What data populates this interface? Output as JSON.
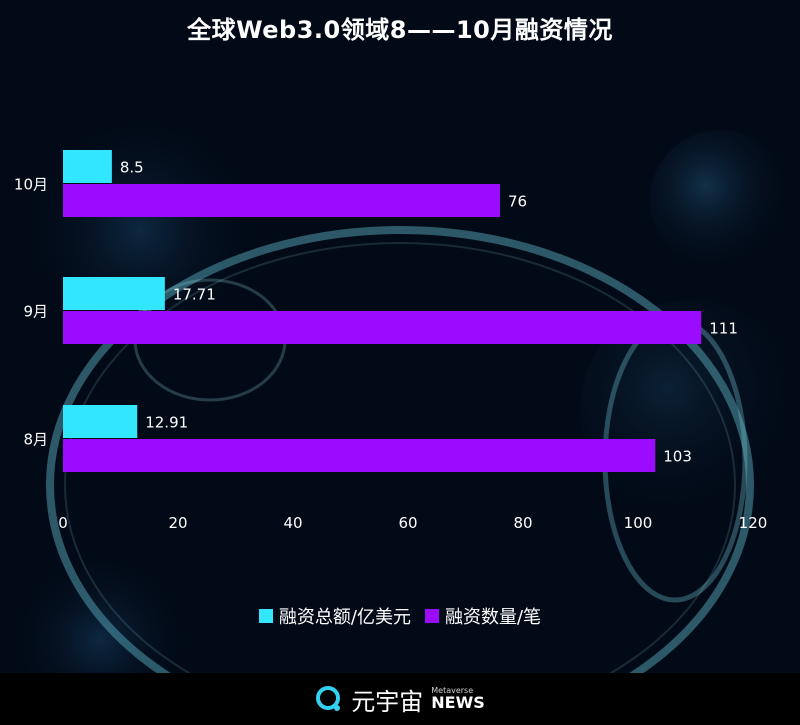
{
  "title": "全球Web3.0领域8——10月融资情况",
  "chart_data": {
    "type": "bar",
    "orientation": "horizontal",
    "categories": [
      "10月",
      "9月",
      "8月"
    ],
    "series": [
      {
        "name": "融资总额/亿美元",
        "color": "#33e6ff",
        "values": [
          8.5,
          17.71,
          12.91
        ],
        "labels": [
          "8.5",
          "17.71",
          "12.91"
        ]
      },
      {
        "name": "融资数量/笔",
        "color": "#9b0cff",
        "values": [
          76,
          111,
          103
        ],
        "labels": [
          "76",
          "111",
          "103"
        ]
      }
    ],
    "xlim": [
      0,
      120
    ],
    "xticks": [
      "0",
      "20",
      "40",
      "60",
      "80",
      "100",
      "120"
    ],
    "grid": false,
    "legend_position": "bottom"
  },
  "footer": {
    "brand": "元宇宙",
    "brand_small": "Metaverse",
    "brand_news": "NEWS"
  }
}
